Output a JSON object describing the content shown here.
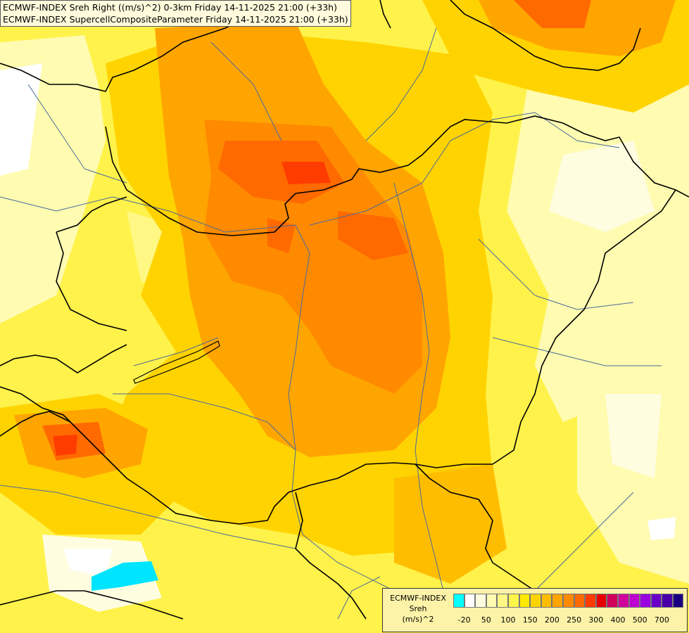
{
  "header": {
    "line1": "ECMWF-INDEX Sreh Right ((m/s)^2) 0-3km Friday 14-11-2025 21:00 (+33h)",
    "line2": "ECMWF-INDEX SupercellCompositeParameter Friday 14-11-2025 21:00 (+33h)"
  },
  "legend": {
    "title_line1": "ECMWF-INDEX",
    "title_line2": "Sreh",
    "title_line3": "(m/s)^2",
    "swatch_colors": [
      "#00ffff",
      "#ffffff",
      "#fffde0",
      "#fffbb0",
      "#fff884",
      "#fff44a",
      "#ffe900",
      "#ffd300",
      "#ffbd00",
      "#ffa500",
      "#ff8a00",
      "#ff6a00",
      "#ff3c00",
      "#e80000",
      "#d0005a",
      "#d0009a",
      "#c000d0",
      "#9a00e0",
      "#6a00c8",
      "#4a00a8",
      "#1a0080"
    ],
    "tick_labels": [
      "-20",
      "50",
      "100",
      "150",
      "200",
      "250",
      "300",
      "400",
      "500",
      "700"
    ]
  },
  "colors": {
    "border": "#000000",
    "river": "#4a6a9a"
  }
}
